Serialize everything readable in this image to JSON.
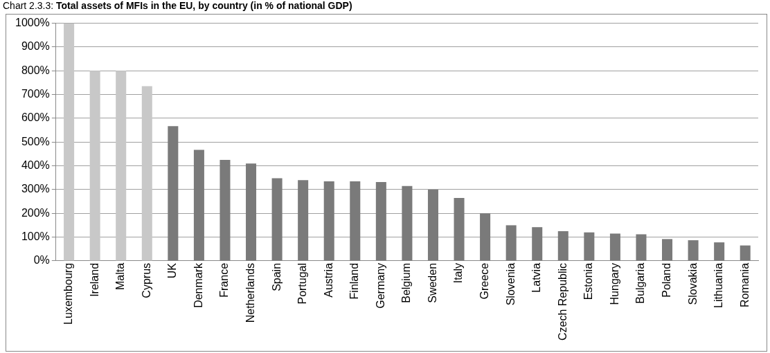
{
  "chart_data": {
    "type": "bar",
    "title": "Chart 2.3.3: Total assets of MFIs in the EU, by country (in % of national GDP)",
    "categories": [
      "Luxembourg",
      "Ireland",
      "Malta",
      "Cyprus",
      "UK",
      "Denmark",
      "France",
      "Netherlands",
      "Spain",
      "Portugal",
      "Austria",
      "Finland",
      "Germany",
      "Belgium",
      "Sweden",
      "Italy",
      "Greece",
      "Slovenia",
      "Latvia",
      "Czech Republic",
      "Estonia",
      "Hungary",
      "Bulgaria",
      "Poland",
      "Slovakia",
      "Lithuania",
      "Romania"
    ],
    "values": [
      1000,
      800,
      800,
      735,
      567,
      467,
      425,
      410,
      348,
      340,
      335,
      335,
      332,
      315,
      300,
      265,
      200,
      150,
      142,
      125,
      120,
      115,
      112,
      92,
      87,
      78,
      65
    ],
    "colors": [
      "#c8c8c8",
      "#c8c8c8",
      "#c8c8c8",
      "#c8c8c8",
      "#7a7a7a",
      "#7a7a7a",
      "#7a7a7a",
      "#7a7a7a",
      "#7a7a7a",
      "#7a7a7a",
      "#7a7a7a",
      "#7a7a7a",
      "#7a7a7a",
      "#7a7a7a",
      "#7a7a7a",
      "#7a7a7a",
      "#7a7a7a",
      "#7a7a7a",
      "#7a7a7a",
      "#7a7a7a",
      "#7a7a7a",
      "#7a7a7a",
      "#7a7a7a",
      "#7a7a7a",
      "#7a7a7a",
      "#7a7a7a",
      "#7a7a7a"
    ],
    "ylim": [
      0,
      1000
    ],
    "yticks": [
      {
        "value": 0,
        "label": "0%"
      },
      {
        "value": 100,
        "label": "100%"
      },
      {
        "value": 200,
        "label": "200%"
      },
      {
        "value": 300,
        "label": "300%"
      },
      {
        "value": 400,
        "label": "400%"
      },
      {
        "value": 500,
        "label": "500%"
      },
      {
        "value": 600,
        "label": "600%"
      },
      {
        "value": 700,
        "label": "700%"
      },
      {
        "value": 800,
        "label": "800%"
      },
      {
        "value": 900,
        "label": "900%"
      },
      {
        "value": 1000,
        "label": "1000%"
      }
    ],
    "grid": "y",
    "legend": false
  }
}
